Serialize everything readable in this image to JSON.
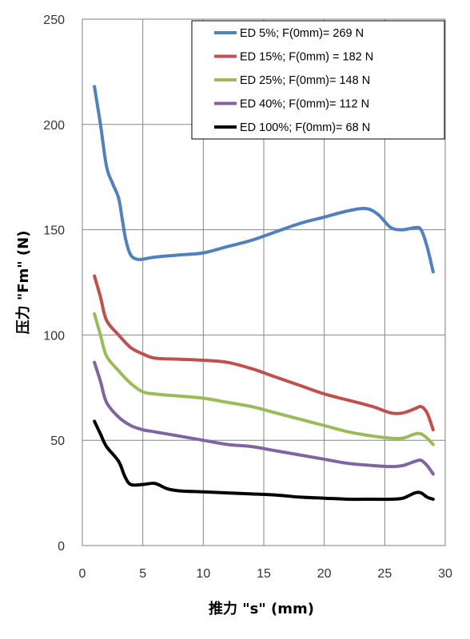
{
  "chart_data": {
    "type": "line",
    "xlabel": "推力 \"s\" (mm)",
    "ylabel": "压力 \"Fm\" (N)",
    "xlim": [
      0,
      30
    ],
    "ylim": [
      0,
      250
    ],
    "x_ticks": [
      0,
      5,
      10,
      15,
      20,
      25,
      30
    ],
    "y_ticks": [
      0,
      50,
      100,
      150,
      200,
      250
    ],
    "grid": true,
    "legend_position": "top-right",
    "series": [
      {
        "name": "ED 5%; F(0mm)= 269 N",
        "color": "#4F81BD",
        "points": [
          [
            1,
            218
          ],
          [
            1.5,
            200
          ],
          [
            2,
            180
          ],
          [
            2.5,
            172
          ],
          [
            3,
            165
          ],
          [
            3.3,
            155
          ],
          [
            3.6,
            145
          ],
          [
            4,
            138
          ],
          [
            4.5,
            136
          ],
          [
            5,
            136
          ],
          [
            6,
            137
          ],
          [
            8,
            138
          ],
          [
            10,
            139
          ],
          [
            12,
            142
          ],
          [
            14,
            145
          ],
          [
            16,
            149
          ],
          [
            18,
            153
          ],
          [
            20,
            156
          ],
          [
            22,
            159
          ],
          [
            23.5,
            160
          ],
          [
            24.5,
            157
          ],
          [
            25.5,
            151
          ],
          [
            26.5,
            150
          ],
          [
            27.5,
            151
          ],
          [
            28,
            150
          ],
          [
            28.5,
            142
          ],
          [
            29,
            130
          ]
        ]
      },
      {
        "name": "ED 15%; F(0mm) = 182 N",
        "color": "#C0504D",
        "points": [
          [
            1,
            128
          ],
          [
            1.5,
            118
          ],
          [
            2,
            107
          ],
          [
            3,
            100
          ],
          [
            4,
            94
          ],
          [
            5,
            91
          ],
          [
            6,
            89
          ],
          [
            8,
            88.5
          ],
          [
            10,
            88
          ],
          [
            12,
            87
          ],
          [
            14,
            84
          ],
          [
            16,
            80
          ],
          [
            18,
            76
          ],
          [
            20,
            72
          ],
          [
            22,
            69
          ],
          [
            24,
            66
          ],
          [
            25.5,
            63
          ],
          [
            26.5,
            63
          ],
          [
            27.5,
            65
          ],
          [
            28,
            66
          ],
          [
            28.5,
            63
          ],
          [
            29,
            55
          ]
        ]
      },
      {
        "name": "ED 25%; F(0mm)= 148 N",
        "color": "#9BBB59",
        "points": [
          [
            1,
            110
          ],
          [
            1.5,
            100
          ],
          [
            2,
            90
          ],
          [
            3,
            83
          ],
          [
            4,
            77
          ],
          [
            5,
            73
          ],
          [
            6,
            72
          ],
          [
            8,
            71
          ],
          [
            10,
            70
          ],
          [
            12,
            68
          ],
          [
            14,
            66
          ],
          [
            16,
            63
          ],
          [
            18,
            60
          ],
          [
            20,
            57
          ],
          [
            22,
            54
          ],
          [
            24,
            52
          ],
          [
            25.5,
            51
          ],
          [
            26.5,
            51
          ],
          [
            27.5,
            53
          ],
          [
            28,
            53
          ],
          [
            28.5,
            51
          ],
          [
            29,
            48
          ]
        ]
      },
      {
        "name": "ED 40%; F(0mm)= 112 N",
        "color": "#8064A2",
        "points": [
          [
            1,
            87
          ],
          [
            1.5,
            78
          ],
          [
            2,
            68
          ],
          [
            3,
            61
          ],
          [
            4,
            57
          ],
          [
            5,
            55
          ],
          [
            6,
            54
          ],
          [
            8,
            52
          ],
          [
            10,
            50
          ],
          [
            12,
            48
          ],
          [
            14,
            47
          ],
          [
            16,
            45
          ],
          [
            18,
            43
          ],
          [
            20,
            41
          ],
          [
            22,
            39
          ],
          [
            24,
            38
          ],
          [
            25.5,
            37.5
          ],
          [
            26.5,
            38
          ],
          [
            27.5,
            40
          ],
          [
            28,
            40.5
          ],
          [
            28.5,
            38
          ],
          [
            29,
            34
          ]
        ]
      },
      {
        "name": "ED 100%; F(0mm)= 68 N",
        "color": "#000000",
        "points": [
          [
            1,
            59
          ],
          [
            1.5,
            53
          ],
          [
            2,
            47
          ],
          [
            3,
            40
          ],
          [
            3.5,
            33
          ],
          [
            4,
            29
          ],
          [
            5,
            29
          ],
          [
            6,
            29.5
          ],
          [
            7,
            27
          ],
          [
            8,
            26
          ],
          [
            10,
            25.5
          ],
          [
            12,
            25
          ],
          [
            14,
            24.5
          ],
          [
            16,
            24
          ],
          [
            18,
            23
          ],
          [
            20,
            22.5
          ],
          [
            22,
            22
          ],
          [
            24,
            22
          ],
          [
            25.5,
            22
          ],
          [
            26.5,
            22.5
          ],
          [
            27.5,
            25
          ],
          [
            28,
            25
          ],
          [
            28.5,
            23
          ],
          [
            29,
            22
          ]
        ]
      }
    ]
  }
}
